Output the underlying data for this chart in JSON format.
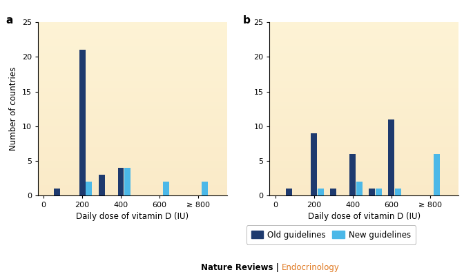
{
  "panel_a": {
    "old": [
      1,
      21,
      3,
      4,
      0,
      0
    ],
    "new": [
      0,
      2,
      0,
      4,
      2,
      2
    ],
    "x_old": [
      0.7,
      2.0,
      3.0,
      4.0,
      6.0,
      8.0
    ],
    "x_new": [
      1.05,
      2.35,
      3.35,
      4.35,
      6.35,
      8.35
    ],
    "xlabel": "Daily dose of vitamin D (IU)",
    "ylabel": "Number of countries",
    "xtick_labels": [
      "0",
      "200",
      "400",
      "600",
      "≥ 800"
    ],
    "xtick_pos": [
      0,
      2,
      4,
      6,
      8
    ],
    "ylim": [
      0,
      25
    ],
    "yticks": [
      0,
      5,
      10,
      15,
      20,
      25
    ],
    "label": "a"
  },
  "panel_b": {
    "old": [
      1,
      9,
      1,
      6,
      1,
      11,
      0
    ],
    "new": [
      0,
      1,
      0,
      2,
      1,
      1,
      6
    ],
    "x_old": [
      0.7,
      2.0,
      3.0,
      4.0,
      5.0,
      6.0,
      8.0
    ],
    "x_new": [
      1.05,
      2.35,
      3.35,
      4.35,
      5.35,
      6.35,
      8.35
    ],
    "xlabel": "Daily dose of vitamin D (IU)",
    "xtick_labels": [
      "0",
      "200",
      "400",
      "600",
      "≥ 800"
    ],
    "xtick_pos": [
      0,
      2,
      4,
      6,
      8
    ],
    "ylim": [
      0,
      25
    ],
    "yticks": [
      0,
      5,
      10,
      15,
      20,
      25
    ],
    "label": "b"
  },
  "color_old": "#1e3a6e",
  "color_new": "#4bb8e8",
  "legend_old": "Old guidelines",
  "legend_new": "New guidelines",
  "footer_bold": "Nature Reviews",
  "footer_color": "Endocrinology",
  "bar_width": 0.32
}
